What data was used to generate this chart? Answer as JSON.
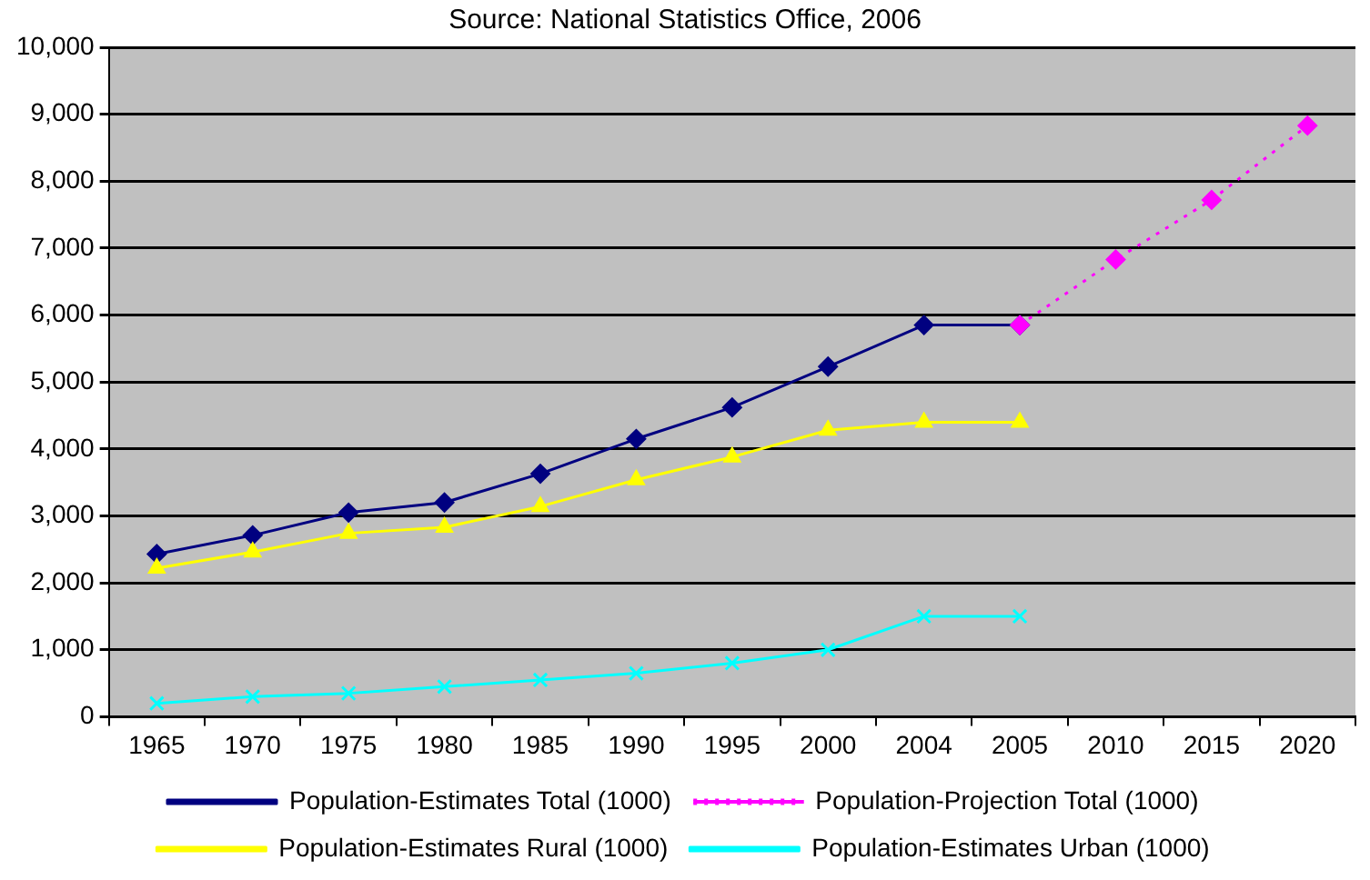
{
  "chart_data": {
    "type": "line",
    "annotations": [
      "Source: National Statistics Office, 2006"
    ],
    "categories": [
      "1965",
      "1970",
      "1975",
      "1980",
      "1985",
      "1990",
      "1995",
      "2000",
      "2004",
      "2005",
      "2010",
      "2015",
      "2020"
    ],
    "series": [
      {
        "name": "Population-Estimates Total (1000)",
        "color": "#000080",
        "marker": "diamond",
        "line_style": "solid",
        "values": [
          2430,
          2710,
          3050,
          3200,
          3630,
          4150,
          4620,
          5230,
          5850,
          5850,
          null,
          null,
          null
        ]
      },
      {
        "name": "Population-Projection Total (1000)",
        "color": "#ff00ff",
        "marker": "diamond",
        "line_style": "dotted",
        "values": [
          null,
          null,
          null,
          null,
          null,
          null,
          null,
          null,
          null,
          5850,
          6830,
          7720,
          8830
        ]
      },
      {
        "name": "Population-Estimates Rural (1000)",
        "color": "#ffff00",
        "marker": "triangle",
        "line_style": "solid",
        "values": [
          2220,
          2460,
          2740,
          2830,
          3140,
          3540,
          3880,
          4280,
          4400,
          4400,
          null,
          null,
          null
        ]
      },
      {
        "name": "Population-Estimates Urban (1000)",
        "color": "#00ffff",
        "marker": "cross",
        "line_style": "solid",
        "values": [
          200,
          300,
          350,
          450,
          550,
          650,
          800,
          1000,
          1500,
          1500,
          null,
          null,
          null
        ]
      }
    ],
    "ylim": [
      0,
      10000
    ],
    "yticks": [
      0,
      {
        "value": 1000,
        "label": "1,000"
      },
      {
        "value": 2000,
        "label": "2,000"
      },
      {
        "value": 3000,
        "label": "3,000"
      },
      {
        "value": 4000,
        "label": "4,000"
      },
      {
        "value": 5000,
        "label": "5,000"
      },
      {
        "value": 6000,
        "label": "6,000"
      },
      {
        "value": 7000,
        "label": "7,000"
      },
      {
        "value": 8000,
        "label": "8,000"
      },
      {
        "value": 9000,
        "label": "9,000"
      },
      {
        "value": 10000,
        "label": "10,000"
      }
    ],
    "grid": "y",
    "legend": "bottom"
  }
}
